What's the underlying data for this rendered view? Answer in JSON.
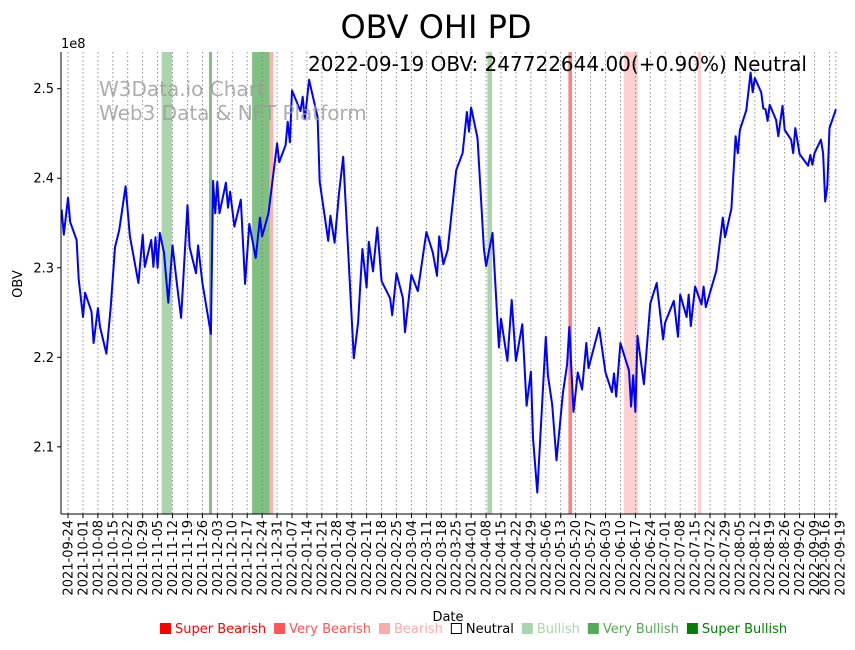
{
  "chart_data": {
    "type": "line",
    "title": "OBV OHI PD",
    "annotation": "2022-09-19 OBV: 247722644.00(+0.90%) Neutral",
    "watermark": [
      "W3Data.io Chart",
      "Web3 Data & NFT Platform"
    ],
    "xlabel": "Date",
    "ylabel": "OBV",
    "y_offset_label": "1e8",
    "ylim": [
      2.025,
      2.541
    ],
    "y_ticks": [
      "2.1",
      "2.2",
      "2.3",
      "2.4",
      "2.5"
    ],
    "x_origin": "2021-09-24",
    "xlim_days": [
      -3.3,
      361
    ],
    "x_tick_labels": [
      "2021-09-24",
      "2021-10-01",
      "2021-10-08",
      "2021-10-15",
      "2021-10-22",
      "2021-10-29",
      "2021-11-05",
      "2021-11-12",
      "2021-11-19",
      "2021-11-26",
      "2021-12-03",
      "2021-12-10",
      "2021-12-17",
      "2021-12-24",
      "2021-12-31",
      "2022-01-07",
      "2022-01-14",
      "2022-01-21",
      "2022-01-28",
      "2022-02-04",
      "2022-02-11",
      "2022-02-18",
      "2022-02-25",
      "2022-03-04",
      "2022-03-11",
      "2022-03-18",
      "2022-03-25",
      "2022-04-01",
      "2022-04-08",
      "2022-04-15",
      "2022-04-22",
      "2022-04-29",
      "2022-05-06",
      "2022-05-13",
      "2022-05-20",
      "2022-05-27",
      "2022-06-03",
      "2022-06-10",
      "2022-06-17",
      "2022-06-24",
      "2022-07-01",
      "2022-07-08",
      "2022-07-15",
      "2022-07-22",
      "2022-07-29",
      "2022-08-05",
      "2022-08-12",
      "2022-08-19",
      "2022-08-26",
      "2022-09-02",
      "2022-09-09",
      "2022-09-16",
      "2022-09-19"
    ],
    "grid": "vertical dotted",
    "series": [
      {
        "name": "OBV",
        "color": "#0000ff",
        "points_days_value": [
          [
            -3,
            2.365
          ],
          [
            -2,
            2.337
          ],
          [
            0,
            2.378
          ],
          [
            1,
            2.351
          ],
          [
            4,
            2.331
          ],
          [
            5,
            2.287
          ],
          [
            7,
            2.245
          ],
          [
            8,
            2.272
          ],
          [
            11,
            2.251
          ],
          [
            12,
            2.216
          ],
          [
            14,
            2.255
          ],
          [
            15,
            2.234
          ],
          [
            18,
            2.204
          ],
          [
            20,
            2.256
          ],
          [
            22,
            2.323
          ],
          [
            24,
            2.342
          ],
          [
            27,
            2.391
          ],
          [
            29,
            2.335
          ],
          [
            31,
            2.309
          ],
          [
            33,
            2.283
          ],
          [
            35,
            2.337
          ],
          [
            36,
            2.301
          ],
          [
            39,
            2.331
          ],
          [
            40,
            2.301
          ],
          [
            41,
            2.334
          ],
          [
            42,
            2.3
          ],
          [
            43,
            2.339
          ],
          [
            45,
            2.317
          ],
          [
            47,
            2.261
          ],
          [
            49,
            2.325
          ],
          [
            51,
            2.283
          ],
          [
            53,
            2.244
          ],
          [
            56,
            2.37
          ],
          [
            57,
            2.323
          ],
          [
            60,
            2.294
          ],
          [
            61,
            2.325
          ],
          [
            63,
            2.283
          ],
          [
            67,
            2.226
          ],
          [
            68,
            2.397
          ],
          [
            69,
            2.361
          ],
          [
            70,
            2.396
          ],
          [
            71,
            2.361
          ],
          [
            74,
            2.395
          ],
          [
            75,
            2.367
          ],
          [
            76,
            2.385
          ],
          [
            78,
            2.346
          ],
          [
            81,
            2.376
          ],
          [
            83,
            2.282
          ],
          [
            85,
            2.349
          ],
          [
            88,
            2.311
          ],
          [
            90,
            2.356
          ],
          [
            91,
            2.335
          ],
          [
            94,
            2.361
          ],
          [
            98,
            2.439
          ],
          [
            99,
            2.418
          ],
          [
            102,
            2.437
          ],
          [
            103,
            2.463
          ],
          [
            104,
            2.44
          ],
          [
            105,
            2.498
          ],
          [
            109,
            2.475
          ],
          [
            110,
            2.491
          ],
          [
            111,
            2.466
          ],
          [
            113,
            2.51
          ],
          [
            117,
            2.468
          ],
          [
            118,
            2.396
          ],
          [
            120,
            2.363
          ],
          [
            122,
            2.33
          ],
          [
            123,
            2.358
          ],
          [
            125,
            2.328
          ],
          [
            127,
            2.382
          ],
          [
            129,
            2.424
          ],
          [
            134,
            2.199
          ],
          [
            136,
            2.239
          ],
          [
            138,
            2.321
          ],
          [
            140,
            2.278
          ],
          [
            141,
            2.329
          ],
          [
            143,
            2.296
          ],
          [
            145,
            2.345
          ],
          [
            147,
            2.285
          ],
          [
            151,
            2.266
          ],
          [
            152,
            2.247
          ],
          [
            154,
            2.294
          ],
          [
            157,
            2.266
          ],
          [
            158,
            2.228
          ],
          [
            161,
            2.292
          ],
          [
            164,
            2.274
          ],
          [
            168,
            2.34
          ],
          [
            171,
            2.317
          ],
          [
            173,
            2.291
          ],
          [
            174,
            2.335
          ],
          [
            176,
            2.304
          ],
          [
            178,
            2.32
          ],
          [
            182,
            2.409
          ],
          [
            185,
            2.428
          ],
          [
            187,
            2.474
          ],
          [
            188,
            2.452
          ],
          [
            189,
            2.479
          ],
          [
            192,
            2.445
          ],
          [
            195,
            2.321
          ],
          [
            196,
            2.302
          ],
          [
            199,
            2.339
          ],
          [
            202,
            2.211
          ],
          [
            203,
            2.243
          ],
          [
            206,
            2.196
          ],
          [
            208,
            2.264
          ],
          [
            210,
            2.196
          ],
          [
            213,
            2.237
          ],
          [
            215,
            2.146
          ],
          [
            217,
            2.184
          ],
          [
            218,
            2.11
          ],
          [
            220,
            2.049
          ],
          [
            224,
            2.223
          ],
          [
            225,
            2.18
          ],
          [
            227,
            2.147
          ],
          [
            229,
            2.085
          ],
          [
            232,
            2.16
          ],
          [
            234,
            2.192
          ],
          [
            235,
            2.234
          ],
          [
            237,
            2.139
          ],
          [
            239,
            2.183
          ],
          [
            241,
            2.164
          ],
          [
            243,
            2.216
          ],
          [
            244,
            2.188
          ],
          [
            249,
            2.233
          ],
          [
            252,
            2.183
          ],
          [
            255,
            2.161
          ],
          [
            256,
            2.182
          ],
          [
            257,
            2.156
          ],
          [
            259,
            2.216
          ],
          [
            263,
            2.185
          ],
          [
            264,
            2.145
          ],
          [
            265,
            2.18
          ],
          [
            266,
            2.139
          ],
          [
            267,
            2.224
          ],
          [
            270,
            2.17
          ],
          [
            273,
            2.26
          ],
          [
            276,
            2.283
          ],
          [
            279,
            2.22
          ],
          [
            280,
            2.239
          ],
          [
            284,
            2.263
          ],
          [
            286,
            2.223
          ],
          [
            287,
            2.27
          ],
          [
            290,
            2.245
          ],
          [
            291,
            2.27
          ],
          [
            292,
            2.235
          ],
          [
            294,
            2.279
          ],
          [
            297,
            2.259
          ],
          [
            298,
            2.279
          ],
          [
            299,
            2.256
          ],
          [
            304,
            2.297
          ],
          [
            307,
            2.356
          ],
          [
            308,
            2.334
          ],
          [
            311,
            2.366
          ],
          [
            313,
            2.447
          ],
          [
            314,
            2.428
          ],
          [
            315,
            2.454
          ],
          [
            318,
            2.476
          ],
          [
            320,
            2.518
          ],
          [
            321,
            2.496
          ],
          [
            322,
            2.512
          ],
          [
            325,
            2.496
          ],
          [
            326,
            2.478
          ],
          [
            327,
            2.477
          ],
          [
            328,
            2.464
          ],
          [
            329,
            2.482
          ],
          [
            332,
            2.465
          ],
          [
            333,
            2.447
          ],
          [
            335,
            2.481
          ],
          [
            336,
            2.454
          ],
          [
            339,
            2.443
          ],
          [
            340,
            2.428
          ],
          [
            341,
            2.456
          ],
          [
            343,
            2.427
          ],
          [
            347,
            2.414
          ],
          [
            348,
            2.426
          ],
          [
            349,
            2.415
          ],
          [
            350,
            2.428
          ],
          [
            353,
            2.443
          ],
          [
            354,
            2.428
          ],
          [
            355,
            2.374
          ],
          [
            356,
            2.391
          ],
          [
            357,
            2.456
          ],
          [
            360,
            2.477
          ]
        ]
      }
    ],
    "signal_bands": [
      {
        "start_day": 43.9,
        "end_day": 48.7,
        "signal": "Bullish",
        "color": "#aad4aa"
      },
      {
        "start_day": 66.1,
        "end_day": 67.5,
        "signal": "Very Bullish",
        "color": "#80c080"
      },
      {
        "start_day": 86.3,
        "end_day": 94.6,
        "signal": "Very Bullish",
        "color": "#80c080"
      },
      {
        "start_day": 94.6,
        "end_day": 96.2,
        "signal": "Bearish",
        "color": "#ffb0b0"
      },
      {
        "start_day": 196.6,
        "end_day": 198.8,
        "signal": "Bullish",
        "color": "#aad4aa"
      },
      {
        "start_day": 234.6,
        "end_day": 236.3,
        "signal": "Very Bearish",
        "color": "#ff8080"
      },
      {
        "start_day": 260.7,
        "end_day": 267.2,
        "signal": "Bearish",
        "color": "#ffd0d0"
      },
      {
        "start_day": 295.2,
        "end_day": 296.8,
        "signal": "Bearish",
        "color": "#ffd0d0"
      }
    ],
    "legend_position": "bottom",
    "legend": [
      {
        "label": "Super Bearish",
        "color": "#ff0000"
      },
      {
        "label": "Very Bearish",
        "color": "#ff5555"
      },
      {
        "label": "Bearish",
        "color": "#ffaaaa"
      },
      {
        "label": "Neutral",
        "color": "#000000",
        "hollow": true
      },
      {
        "label": "Bullish",
        "color": "#aad5aa"
      },
      {
        "label": "Very Bullish",
        "color": "#55aa55"
      },
      {
        "label": "Super Bullish",
        "color": "#008000"
      }
    ]
  }
}
